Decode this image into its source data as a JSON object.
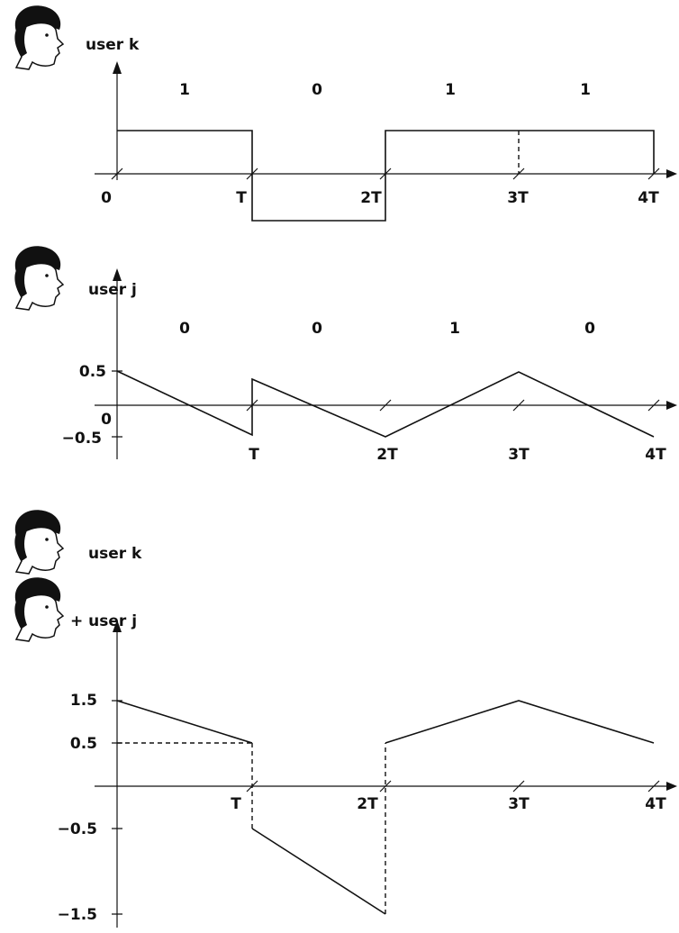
{
  "panels": [
    {
      "users": [
        "user k"
      ],
      "bits": [
        "1",
        "0",
        "1",
        "1"
      ],
      "x_labels": [
        "0",
        "T",
        "2T",
        "3T",
        "4T"
      ]
    },
    {
      "users": [
        "user j"
      ],
      "bits": [
        "0",
        "0",
        "1",
        "0"
      ],
      "y_labels": [
        "0.5",
        "−0.5"
      ],
      "origin": "0",
      "x_labels": [
        "T",
        "2T",
        "3T",
        "4T"
      ]
    },
    {
      "users": [
        "user k",
        "+ user j"
      ],
      "y_labels": [
        "1.5",
        "0.5",
        "−0.5",
        "−1.5"
      ],
      "x_labels": [
        "T",
        "2T",
        "3T",
        "4T"
      ]
    }
  ]
}
